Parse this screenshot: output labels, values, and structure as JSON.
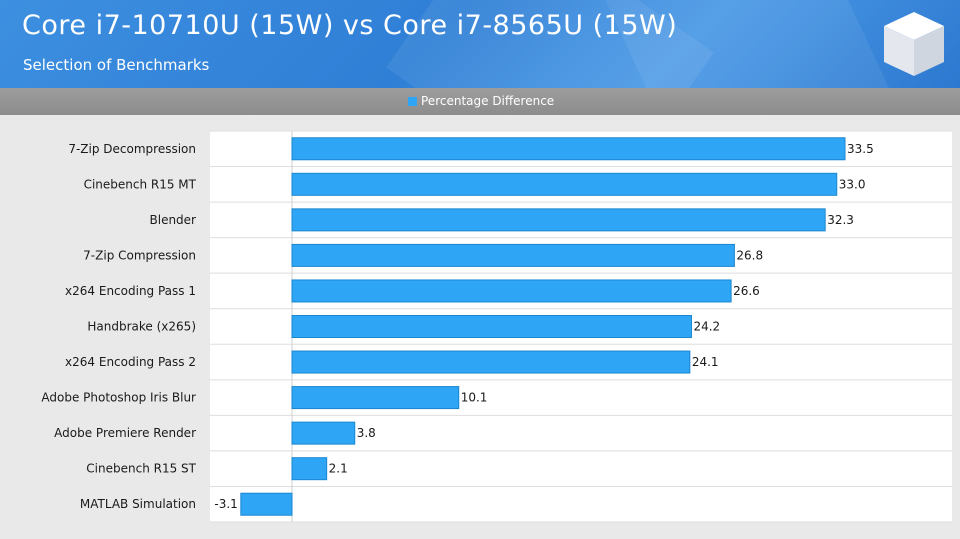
{
  "header": {
    "title": "Core i7-10710U (15W) vs Core i7-8565U (15W)",
    "subtitle": "Selection of Benchmarks"
  },
  "colors": {
    "bar": "#2ea6f5",
    "bar_border": "#1b86cf",
    "header_bg": "#3a8de0",
    "legend_bg": "#959595"
  },
  "chart_data": {
    "type": "bar",
    "orientation": "horizontal",
    "legend_position": "top-center",
    "grid": true,
    "xlim": [
      -5,
      35
    ],
    "categories": [
      "7-Zip Decompression",
      "Cinebench R15 MT",
      "Blender",
      "7-Zip Compression",
      "x264 Encoding Pass 1",
      "Handbrake (x265)",
      "x264 Encoding Pass 2",
      "Adobe Photoshop Iris Blur",
      "Adobe Premiere Render",
      "Cinebench R15 ST",
      "MATLAB Simulation"
    ],
    "series": [
      {
        "name": "Percentage Difference",
        "values": [
          33.5,
          33.0,
          32.3,
          26.8,
          26.6,
          24.2,
          24.1,
          10.1,
          3.8,
          2.1,
          -3.1
        ],
        "labels": [
          "33.5",
          "33.0",
          "32.3",
          "26.8",
          "26.6",
          "24.2",
          "24.1",
          "10.1",
          "3.8",
          "2.1",
          "-3.1"
        ]
      }
    ]
  }
}
